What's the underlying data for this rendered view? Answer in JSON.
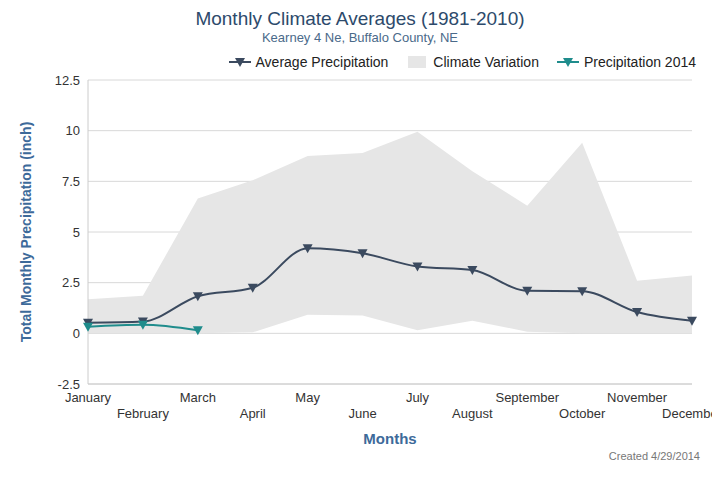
{
  "chart_data": {
    "type": "line",
    "title": "Monthly Climate Averages (1981-2010)",
    "subtitle": "Kearney 4 Ne, Buffalo County, NE",
    "x_label": "Months",
    "y_label": "Total Monthly Precipitation (inch)",
    "credits": "Created 4/29/2014",
    "categories": [
      "January",
      "February",
      "March",
      "April",
      "May",
      "June",
      "July",
      "August",
      "September",
      "October",
      "November",
      "December"
    ],
    "series": [
      {
        "name": "Average Precipitation",
        "type": "line",
        "color": "#3b4a5f",
        "marker": "triangle-down",
        "values": [
          0.52,
          0.58,
          1.83,
          2.25,
          4.2,
          3.95,
          3.3,
          3.12,
          2.1,
          2.08,
          1.05,
          0.62
        ]
      },
      {
        "name": "Climate Variation",
        "type": "range",
        "color": "#e6e6e6",
        "values": [
          [
            0,
            1.68
          ],
          [
            0,
            1.85
          ],
          [
            0,
            6.65
          ],
          [
            0.05,
            7.55
          ],
          [
            0.92,
            8.75
          ],
          [
            0.88,
            8.9
          ],
          [
            0.15,
            9.95
          ],
          [
            0.62,
            8.0
          ],
          [
            0.08,
            6.3
          ],
          [
            0,
            9.4
          ],
          [
            0,
            2.6
          ],
          [
            0,
            2.85
          ]
        ]
      },
      {
        "name": "Precipitation 2014",
        "type": "line",
        "color": "#1f8c8c",
        "marker": "triangle-down",
        "values": [
          0.33,
          0.42,
          0.15,
          null,
          null,
          null,
          null,
          null,
          null,
          null,
          null,
          null
        ]
      }
    ],
    "ylim": [
      -2.5,
      12.5
    ],
    "yticks": [
      -2.5,
      0,
      2.5,
      5,
      7.5,
      10,
      12.5
    ],
    "grid": true,
    "legend": "top-right"
  }
}
